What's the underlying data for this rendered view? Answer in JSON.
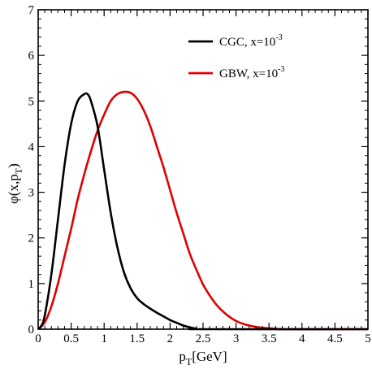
{
  "chart_data": {
    "type": "line",
    "title": "",
    "xlabel": {
      "main": "p",
      "sub": "T",
      "suffix": "[GeV]"
    },
    "ylabel": {
      "main": "φ(x,p",
      "sub": "T",
      "suffix": ")"
    },
    "xlim": [
      0,
      5
    ],
    "ylim": [
      0,
      7
    ],
    "x_ticks": [
      "0",
      "0.5",
      "1",
      "1.5",
      "2",
      "2.5",
      "3",
      "3.5",
      "4",
      "4.5",
      "5"
    ],
    "y_ticks": [
      "0",
      "1",
      "2",
      "3",
      "4",
      "5",
      "6",
      "7"
    ],
    "grid": false,
    "legend_position": "top-right",
    "series": [
      {
        "name": "CGC, x=10",
        "name_sup": "-3",
        "color": "#000000",
        "points": [
          [
            0,
            0
          ],
          [
            0.05,
            0.08
          ],
          [
            0.1,
            0.3
          ],
          [
            0.2,
            1.2
          ],
          [
            0.3,
            2.4
          ],
          [
            0.4,
            3.6
          ],
          [
            0.5,
            4.5
          ],
          [
            0.6,
            5.0
          ],
          [
            0.7,
            5.15
          ],
          [
            0.75,
            5.15
          ],
          [
            0.8,
            5.0
          ],
          [
            0.9,
            4.45
          ],
          [
            1.0,
            3.5
          ],
          [
            1.1,
            2.55
          ],
          [
            1.2,
            1.8
          ],
          [
            1.3,
            1.25
          ],
          [
            1.4,
            0.9
          ],
          [
            1.5,
            0.68
          ],
          [
            1.6,
            0.55
          ],
          [
            1.7,
            0.45
          ],
          [
            1.8,
            0.36
          ],
          [
            1.9,
            0.28
          ],
          [
            2.0,
            0.2
          ],
          [
            2.1,
            0.14
          ],
          [
            2.2,
            0.08
          ],
          [
            2.3,
            0.04
          ],
          [
            2.4,
            0.01
          ],
          [
            2.5,
            0
          ],
          [
            5.0,
            0
          ]
        ]
      },
      {
        "name": "GBW, x=10",
        "name_sup": "-3",
        "color": "#e00000",
        "points": [
          [
            0,
            0
          ],
          [
            0.1,
            0.15
          ],
          [
            0.2,
            0.5
          ],
          [
            0.3,
            1.0
          ],
          [
            0.4,
            1.6
          ],
          [
            0.5,
            2.2
          ],
          [
            0.6,
            2.85
          ],
          [
            0.7,
            3.4
          ],
          [
            0.8,
            3.9
          ],
          [
            0.9,
            4.35
          ],
          [
            1.0,
            4.7
          ],
          [
            1.1,
            5.0
          ],
          [
            1.2,
            5.15
          ],
          [
            1.3,
            5.2
          ],
          [
            1.4,
            5.18
          ],
          [
            1.5,
            5.05
          ],
          [
            1.6,
            4.8
          ],
          [
            1.7,
            4.45
          ],
          [
            1.8,
            4.0
          ],
          [
            1.9,
            3.55
          ],
          [
            2.0,
            3.05
          ],
          [
            2.1,
            2.55
          ],
          [
            2.2,
            2.1
          ],
          [
            2.3,
            1.65
          ],
          [
            2.4,
            1.3
          ],
          [
            2.5,
            0.98
          ],
          [
            2.6,
            0.74
          ],
          [
            2.7,
            0.54
          ],
          [
            2.8,
            0.39
          ],
          [
            2.9,
            0.27
          ],
          [
            3.0,
            0.18
          ],
          [
            3.1,
            0.12
          ],
          [
            3.2,
            0.08
          ],
          [
            3.3,
            0.05
          ],
          [
            3.4,
            0.03
          ],
          [
            3.5,
            0.02
          ],
          [
            3.6,
            0.01
          ],
          [
            3.8,
            0.0
          ],
          [
            5.0,
            0
          ]
        ]
      }
    ]
  }
}
